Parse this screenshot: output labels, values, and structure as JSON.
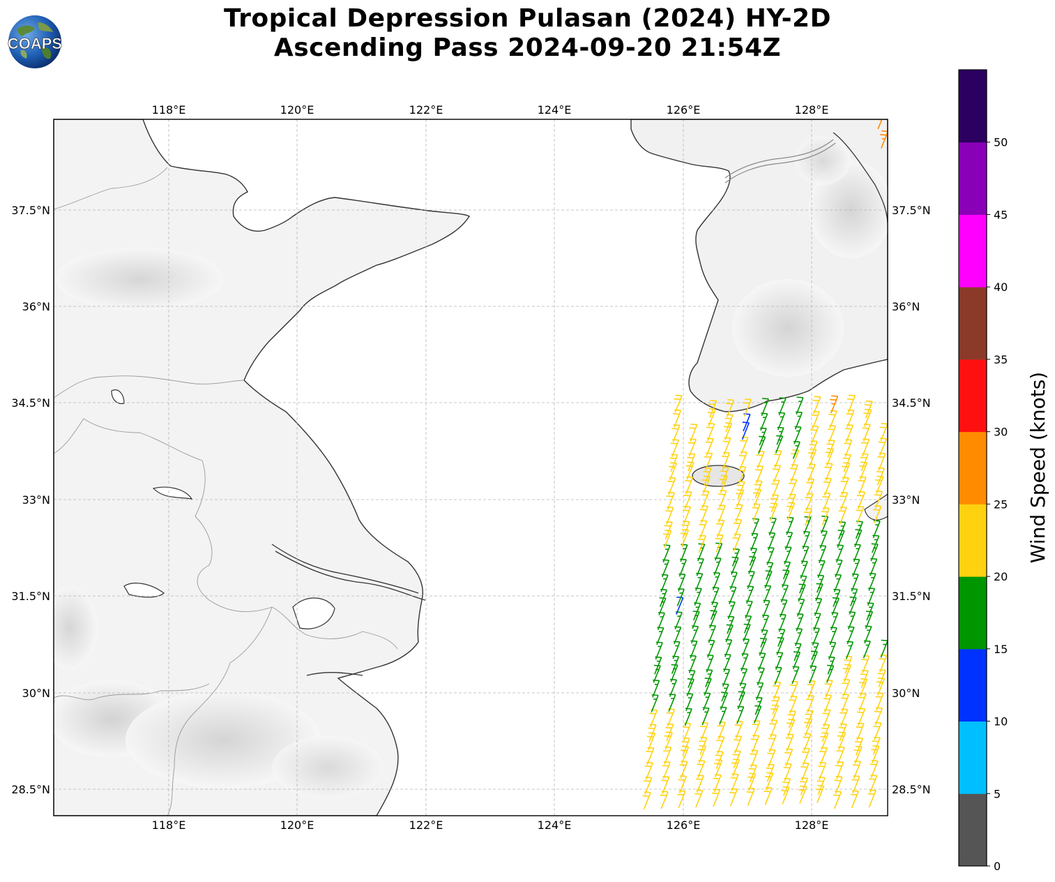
{
  "title": {
    "line1": "Tropical Depression Pulasan (2024) HY-2D",
    "line2": "Ascending Pass 2024-09-20 21:54Z"
  },
  "logo": {
    "text": "COAPS",
    "icon": "globe-logo"
  },
  "map": {
    "lon_range": [
      116.2,
      129.2
    ],
    "lat_range": [
      27.9,
      38.75
    ],
    "x_ticks": [
      "118°E",
      "120°E",
      "122°E",
      "124°E",
      "126°E",
      "128°E"
    ],
    "y_ticks": [
      "37.5°N",
      "36°N",
      "34.5°N",
      "33°N",
      "31.5°N",
      "30°N",
      "28.5°N"
    ],
    "gridlines": "dashed gray",
    "land_shading": "gray topography",
    "coastline_color": "#333333"
  },
  "wind_barbs": {
    "swath": "eastern edge of domain, approx 125.5°E–129.2°E, 28°N–34.3°N",
    "dominant_direction": "from south-southwest",
    "regions": [
      {
        "area": "southern swath 28°N–29.5°N",
        "speed_class": "20-25",
        "color": "#ffd210"
      },
      {
        "area": "central swath 29.5°N–32.3°N",
        "speed_class": "15-20",
        "color": "#009600"
      },
      {
        "area": "northern swath 32.3°N–34°N",
        "speed_class": "20-25",
        "color": "#ffd210"
      },
      {
        "area": "near 126.9°E 33.8°N",
        "speed_class": "10-15",
        "color": "#0032ff"
      },
      {
        "area": "near 125.8°E 31°N",
        "speed_class": "10-15",
        "color": "#0032ff"
      },
      {
        "area": "near 128.2°E 34.1°N and 129°E 38.5°N",
        "speed_class": "25-30",
        "color": "#ff8c00"
      }
    ]
  },
  "colorbar": {
    "label": "Wind Speed (knots)",
    "ticks": [
      "0",
      "5",
      "10",
      "15",
      "20",
      "25",
      "30",
      "35",
      "40",
      "45",
      "50"
    ],
    "colors": [
      "#555555",
      "#00bfff",
      "#0032ff",
      "#009600",
      "#ffd210",
      "#ff8c00",
      "#ff1010",
      "#8b3a2a",
      "#ff00ff",
      "#8a00b8",
      "#2b0060"
    ]
  }
}
